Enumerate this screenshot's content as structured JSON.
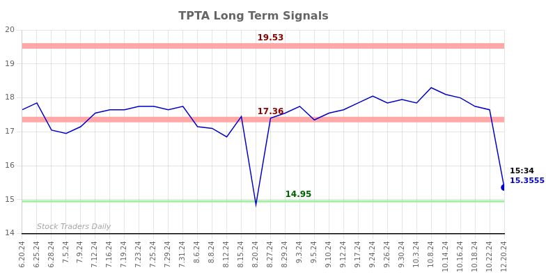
{
  "chart_data": {
    "type": "line",
    "title": "TPTA Long Term Signals",
    "categories": [
      "6.20.24",
      "6.25.24",
      "6.28.24",
      "7.5.24",
      "7.9.24",
      "7.12.24",
      "7.16.24",
      "7.19.24",
      "7.23.24",
      "7.25.24",
      "7.29.24",
      "7.31.24",
      "8.6.24",
      "8.8.24",
      "8.12.24",
      "8.15.24",
      "8.20.24",
      "8.27.24",
      "8.29.24",
      "9.3.24",
      "9.5.24",
      "9.10.24",
      "9.12.24",
      "9.17.24",
      "9.24.24",
      "9.26.24",
      "9.30.24",
      "10.3.24",
      "10.8.24",
      "10.14.24",
      "10.16.24",
      "10.18.24",
      "10.22.24",
      "12.20.24"
    ],
    "values": [
      17.65,
      17.85,
      17.05,
      16.95,
      17.15,
      17.55,
      17.65,
      17.65,
      17.75,
      17.75,
      17.65,
      17.75,
      17.15,
      17.1,
      16.85,
      17.45,
      14.85,
      17.4,
      17.55,
      17.75,
      17.35,
      17.55,
      17.65,
      17.85,
      18.05,
      17.85,
      17.95,
      17.85,
      18.3,
      18.1,
      18.0,
      17.75,
      17.65,
      15.3555
    ],
    "color": "#0000CD",
    "hlines": [
      {
        "value": 19.53,
        "color": "#FF9999",
        "label": "19.53",
        "label_color": "#8B0000"
      },
      {
        "value": 17.36,
        "color": "#FF9999",
        "label": "17.36",
        "label_color": "#8B0000"
      },
      {
        "value": 14.95,
        "color": "#90EE90",
        "label": "14.95",
        "label_color": "#006400"
      }
    ],
    "last_point_labels": [
      {
        "text": "15:34",
        "color": "#000000"
      },
      {
        "text": "15.3555",
        "color": "#0000CD"
      }
    ],
    "watermark": "Stock Traders Daily",
    "ylim": [
      14.0,
      20.0
    ],
    "yticks": [
      14,
      15,
      16,
      17,
      18,
      19,
      20
    ],
    "grid": true
  }
}
